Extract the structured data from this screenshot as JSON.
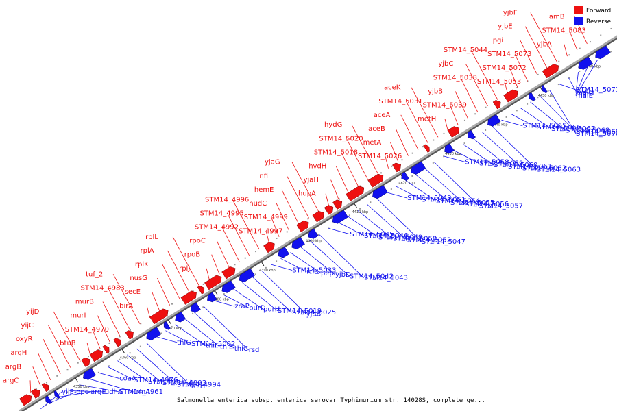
{
  "caption": "Salmonella enterica subsp. enterica serovar Typhimurium str. 14028S, complete ge...",
  "legend": [
    {
      "label": "Forward",
      "color": "#ee1111"
    },
    {
      "label": "Reverse",
      "color": "#1111ee"
    }
  ],
  "colors": {
    "forward": "#ee1111",
    "reverse": "#1111ee",
    "backbone": "#888888"
  },
  "ticks": [
    "4350 kbp",
    "4360 kbp",
    "4370 kbp",
    "4380 kbp",
    "4390 kbp",
    "4400 kbp",
    "4410 kbp",
    "4420 kbp",
    "4430 kbp",
    "4440 kbp",
    "4450 kbp",
    "4460 kbp",
    "4470 kbp"
  ],
  "forward_labels": [
    "argC",
    "argB",
    "argH",
    "oxyR",
    "yijC",
    "yijD",
    "btuB",
    "STM14_4970",
    "murI",
    "murB",
    "STM14_4983",
    "tuf_2",
    "birA",
    "secE",
    "nusG",
    "rplK",
    "rplA",
    "rplL",
    "rplJ",
    "rpoB",
    "rpoC",
    "STM14_4992",
    "STM14_4995",
    "STM14_4996",
    "STM14_4997",
    "STM14_4999",
    "nudC",
    "hemE",
    "nfi",
    "yjaG",
    "hupA",
    "yjaH",
    "hvdH",
    "STM14_5018",
    "STM14_5020",
    "hydG",
    "STM14_5026",
    "metA",
    "aceB",
    "aceA",
    "STM14_5031",
    "aceK",
    "metH",
    "STM14_5039",
    "yjbB",
    "STM14_5038",
    "yjbC",
    "STM14_5044",
    "STM14_5053",
    "STM14_5072",
    "STM14_5073",
    "pgi",
    "yjbE",
    "yjbF",
    "yjbA",
    "STM14_5083",
    "lamB"
  ],
  "reverse_labels": [
    "yijP",
    "ppc",
    "argE",
    "udhA",
    "STM14_4961",
    "trmA",
    "coaA",
    "STM14_4976",
    "STM14_4977",
    "STM14_4993",
    "STM14_4994",
    "thiH",
    "thiG",
    "STM14_5002",
    "thiF",
    "thiE",
    "thiC",
    "rsd",
    "zraP",
    "purD",
    "purH",
    "STM14_5019",
    "STM14_5025",
    "yjaB",
    "STM14_5033",
    "iclR",
    "pepE",
    "yjbD",
    "STM14_5042",
    "STM14_5043",
    "STM14_5045",
    "STM14_5046",
    "STM14_5049",
    "STM14_5050",
    "STM14_5052",
    "STM14_5047",
    "STM14_5048",
    "STM14_5051",
    "STM14_5054",
    "STM14_5055",
    "STM14_5056",
    "STM14_5057",
    "STM14_5058",
    "STM14_5059",
    "STM14_5060",
    "STM14_5061",
    "STM14_5062",
    "STM14_5063",
    "STM14_5065",
    "STM14_5066",
    "STM14_5067",
    "STM14_5068",
    "STM14_5069",
    "STM14_5070",
    "STM14_5071",
    "lysC",
    "malG",
    "malF",
    "malE"
  ]
}
